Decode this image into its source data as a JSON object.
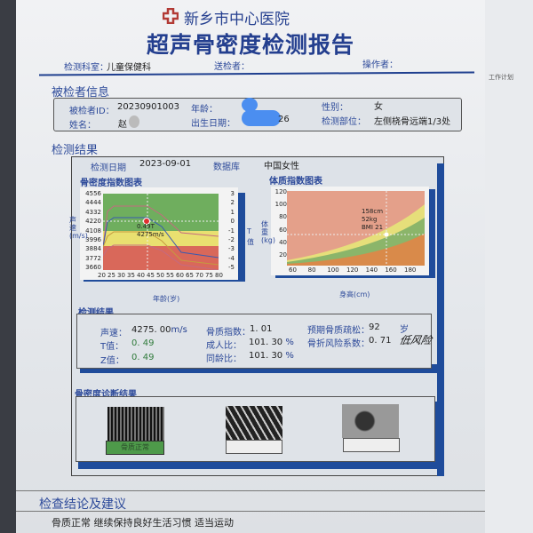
{
  "header": {
    "hospital": "新乡市中心医院",
    "title": "超声骨密度检测报告",
    "dept_label": "检测科室：",
    "dept": "儿童保健科",
    "sender_label": "送检者：",
    "operator_label": "操作者："
  },
  "patient": {
    "section": "被检者信息",
    "id_label": "被检者ID：",
    "id": "20230901003",
    "name_label": "姓名：",
    "name": "赵",
    "age_label": "年龄：",
    "dob_label": "出生日期：",
    "dob_suffix": "26",
    "sex_label": "性别：",
    "sex": "女",
    "site_label": "检测部位：",
    "site": "左侧桡骨远端1/3处"
  },
  "result": {
    "section": "检测结果",
    "date_label": "检测日期",
    "date": "2023-09-01",
    "db_label": "数据库",
    "db": "中国女性"
  },
  "chart_data": [
    {
      "type": "line",
      "title": "骨密度指数图表",
      "xlabel": "年龄(岁)",
      "ylabel": "声速(m/s)",
      "y2label": "T值",
      "x_ticks": [
        "20",
        "25",
        "30",
        "35",
        "40",
        "45",
        "50",
        "55",
        "60",
        "65",
        "70",
        "75",
        "80"
      ],
      "y_ticks": [
        "4556",
        "4444",
        "4332",
        "4220",
        "4108",
        "3996",
        "3884",
        "3772",
        "3660"
      ],
      "y2_ticks": [
        "3",
        "2",
        "1",
        "0",
        "-1",
        "-2",
        "-3",
        "-4",
        "-5"
      ],
      "point": {
        "age": 43,
        "speed": 4275,
        "t": 0.49
      },
      "annotation": [
        "0.49T",
        "4275m/s"
      ],
      "colors": {
        "normal": "#6fae5e",
        "low": "#e9e070",
        "osteo": "#d9685a"
      }
    },
    {
      "type": "area",
      "title": "体质指数图表",
      "xlabel": "身高(cm)",
      "ylabel": "体重(kg)",
      "x_ticks": [
        "60",
        "80",
        "100",
        "120",
        "140",
        "160",
        "180"
      ],
      "y_ticks": [
        "120",
        "100",
        "80",
        "60",
        "40",
        "20"
      ],
      "point": {
        "height": 158,
        "weight": 52,
        "bmi": 21
      },
      "annotation": [
        "158cm",
        "52kg",
        "BMI 21"
      ],
      "colors": {
        "over": "#e4a08a",
        "border": "#e6df7a",
        "normal": "#8bb56a",
        "under": "#d98a4a"
      }
    }
  ],
  "measures": {
    "section": "检测结果",
    "speed_label": "声速：",
    "speed": "4275. 00",
    "speed_unit": "m/s",
    "t_label": "T值：",
    "t": "0. 49",
    "z_label": "Z值：",
    "z": "0. 49",
    "index_label": "骨质指数：",
    "index": "1. 01",
    "adult_label": "成人比：",
    "adult": "101. 30",
    "adult_unit": "%",
    "peer_label": "同龄比：",
    "peer": "101. 30",
    "peer_unit": "%",
    "osteo_label": "预期骨质疏松：",
    "osteo": "92",
    "osteo_unit": "岁",
    "risk_label": "骨折风险系数：",
    "risk": "0. 71",
    "handwritten": "低风险"
  },
  "diagnosis": {
    "section": "骨密度诊断结果",
    "result": "骨质正常"
  },
  "conclusion": {
    "section": "检查结论及建议",
    "text": "骨质正常  继续保持良好生活习惯  适当运动"
  },
  "background": {
    "side_text": "工作计划"
  }
}
